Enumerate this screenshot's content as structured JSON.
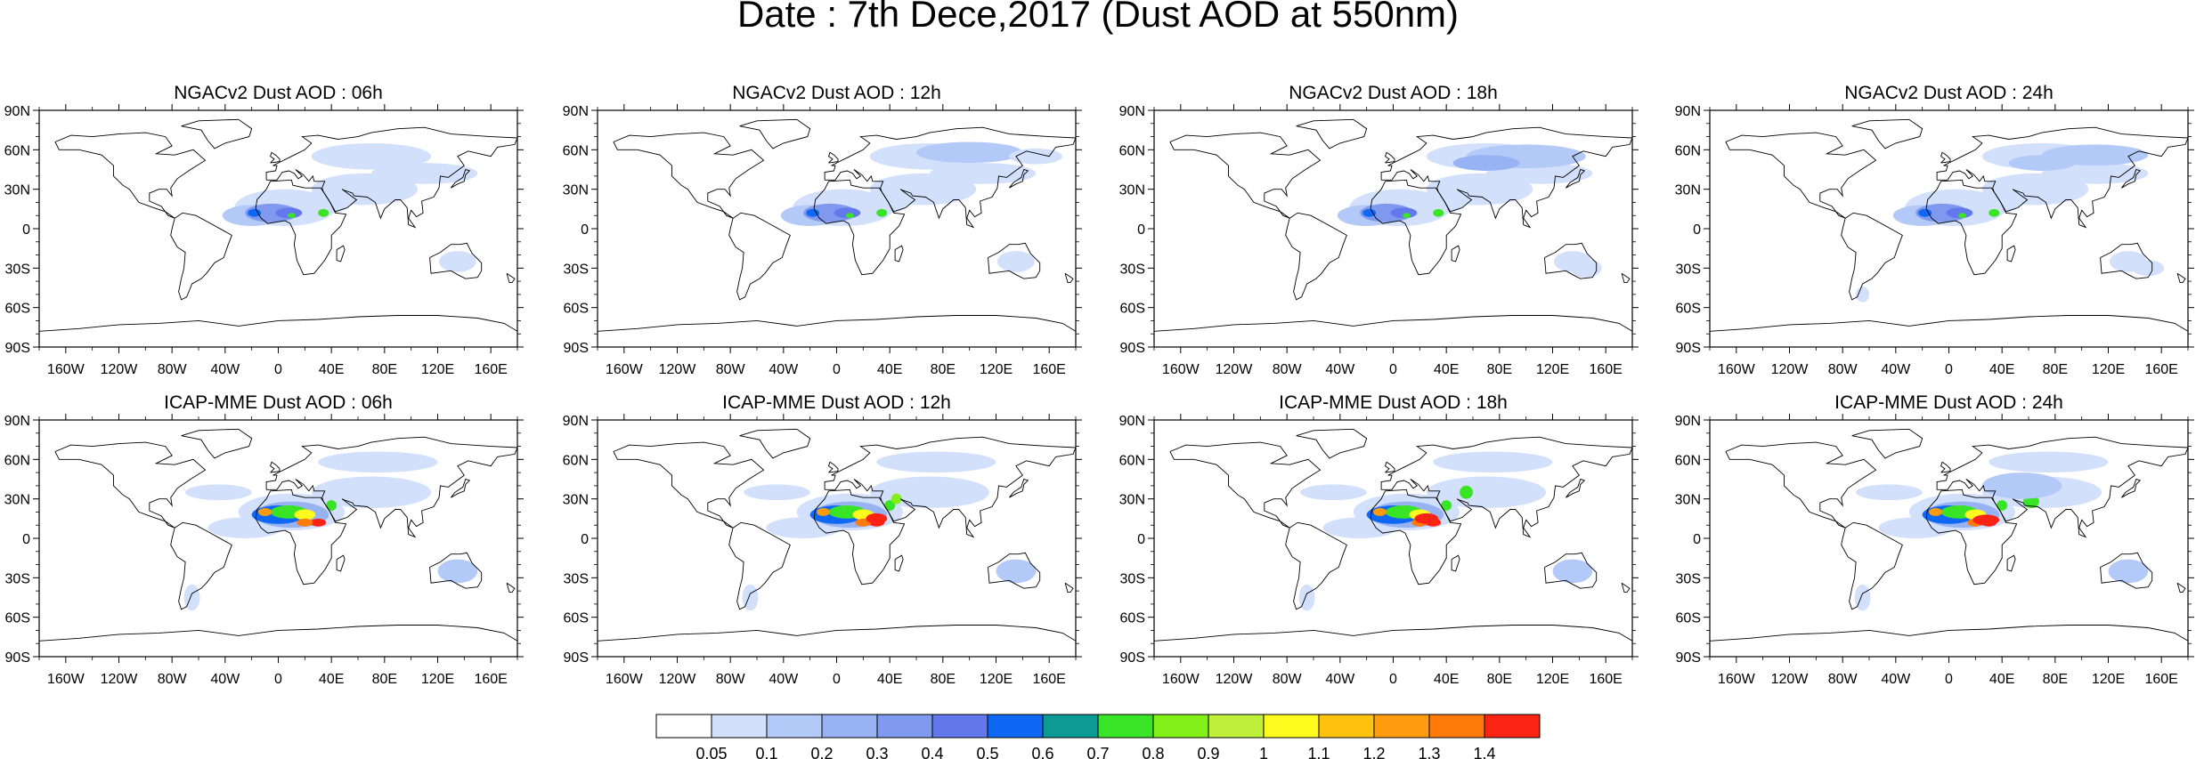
{
  "figure": {
    "title": "Date : 7th Dece,2017 (Dust AOD at 550nm)"
  },
  "axes": {
    "lat_ticks": [
      "90N",
      "60N",
      "30N",
      "0",
      "30S",
      "60S",
      "90S"
    ],
    "lon_ticks": [
      "160W",
      "120W",
      "80W",
      "40W",
      "0",
      "40E",
      "80E",
      "120E",
      "160E"
    ]
  },
  "colorbar": {
    "labels": [
      "0.05",
      "0.1",
      "0.2",
      "0.3",
      "0.4",
      "0.5",
      "0.6",
      "0.7",
      "0.8",
      "0.9",
      "1",
      "1.1",
      "1.2",
      "1.3",
      "1.4"
    ],
    "colors": [
      "#ffffff",
      "#d3e0fb",
      "#b3c9f7",
      "#97b3f3",
      "#7f99ef",
      "#6478ee",
      "#0f68f3",
      "#0d9994",
      "#39e326",
      "#84f01a",
      "#c0f03a",
      "#fffb1f",
      "#ffc20f",
      "#ff9b0c",
      "#ff7a08",
      "#fb2414"
    ]
  },
  "chart_data": {
    "type": "heatmap",
    "variable": "Dust AOD at 550nm",
    "rows": [
      "NGACv2",
      "ICAP-MME"
    ],
    "panels": [
      {
        "title": "NGACv2 Dust AOD : 06h",
        "model": "NGACv2",
        "lead": "06h"
      },
      {
        "title": "NGACv2 Dust AOD : 12h",
        "model": "NGACv2",
        "lead": "12h"
      },
      {
        "title": "NGACv2 Dust AOD : 18h",
        "model": "NGACv2",
        "lead": "18h"
      },
      {
        "title": "NGACv2 Dust AOD : 24h",
        "model": "NGACv2",
        "lead": "24h"
      },
      {
        "title": "ICAP-MME Dust AOD : 06h",
        "model": "ICAP-MME",
        "lead": "06h"
      },
      {
        "title": "ICAP-MME Dust AOD : 12h",
        "model": "ICAP-MME",
        "lead": "12h"
      },
      {
        "title": "ICAP-MME Dust AOD : 18h",
        "model": "ICAP-MME",
        "lead": "18h"
      },
      {
        "title": "ICAP-MME Dust AOD : 24h",
        "model": "ICAP-MME",
        "lead": "24h"
      }
    ],
    "xlim": [
      -180,
      180
    ],
    "ylim": [
      -90,
      90
    ],
    "levels": [
      0.05,
      0.1,
      0.2,
      0.3,
      0.4,
      0.5,
      0.6,
      0.7,
      0.8,
      0.9,
      1,
      1.1,
      1.2,
      1.3,
      1.4
    ]
  }
}
